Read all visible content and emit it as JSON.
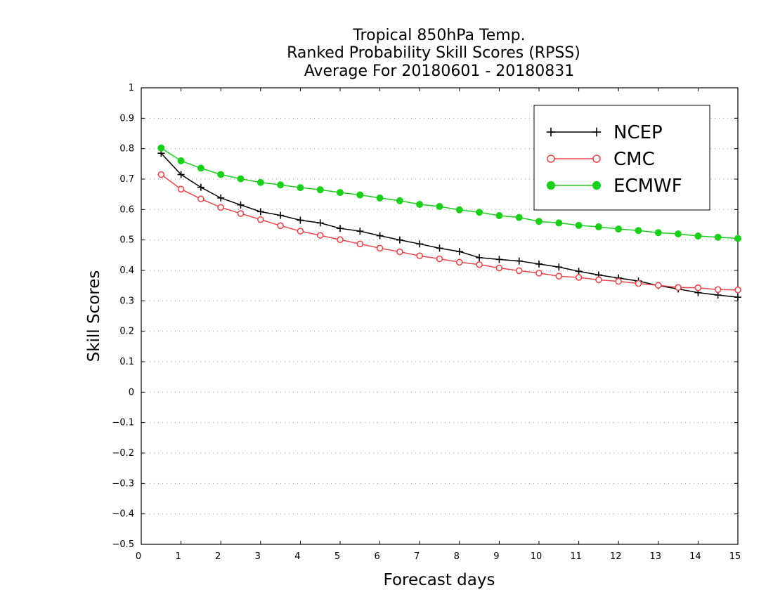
{
  "chart_data": {
    "type": "line",
    "title_lines": [
      "Tropical 850hPa Temp.",
      "Ranked Probability Skill Scores (RPSS)",
      "Average For 20180601 - 20180831"
    ],
    "xlabel": "Forecast days",
    "ylabel": "Skill Scores",
    "xlim": [
      0,
      15
    ],
    "ylim": [
      -0.5,
      1
    ],
    "x_ticks": [
      "0",
      "1",
      "2",
      "3",
      "4",
      "5",
      "6",
      "7",
      "8",
      "9",
      "10",
      "11",
      "12",
      "13",
      "14",
      "15"
    ],
    "y_ticks": [
      "−0.5",
      "−0.4",
      "−0.3",
      "−0.2",
      "−0.1",
      "0",
      "0.1",
      "0.2",
      "0.3",
      "0.4",
      "0.5",
      "0.6",
      "0.7",
      "0.8",
      "0.9",
      "1"
    ],
    "y_tick_values": [
      -0.5,
      -0.4,
      -0.3,
      -0.2,
      -0.1,
      0,
      0.1,
      0.2,
      0.3,
      0.4,
      0.5,
      0.6,
      0.7,
      0.8,
      0.9,
      1
    ],
    "grid": "horizontal-dotted",
    "legend_position": "top-right",
    "x": [
      0.5,
      1,
      1.5,
      2,
      2.5,
      3,
      3.5,
      4,
      4.5,
      5,
      5.5,
      6,
      6.5,
      7,
      7.5,
      8,
      8.5,
      9,
      9.5,
      10,
      10.5,
      11,
      11.5,
      12,
      12.5,
      13,
      13.5,
      14,
      14.5,
      15
    ],
    "series": [
      {
        "name": "NCEP",
        "color": "#000000",
        "marker": "plus",
        "values": [
          0.785,
          0.715,
          0.673,
          0.638,
          0.615,
          0.593,
          0.581,
          0.565,
          0.556,
          0.538,
          0.529,
          0.514,
          0.5,
          0.487,
          0.473,
          0.462,
          0.442,
          0.436,
          0.431,
          0.421,
          0.411,
          0.397,
          0.385,
          0.375,
          0.365,
          0.35,
          0.339,
          0.327,
          0.319,
          0.312
        ]
      },
      {
        "name": "CMC",
        "color": "#e8474a",
        "marker": "open-circle",
        "values": [
          0.715,
          0.667,
          0.635,
          0.607,
          0.587,
          0.567,
          0.547,
          0.529,
          0.515,
          0.501,
          0.487,
          0.473,
          0.461,
          0.448,
          0.438,
          0.427,
          0.419,
          0.408,
          0.399,
          0.391,
          0.381,
          0.377,
          0.369,
          0.364,
          0.357,
          0.351,
          0.344,
          0.343,
          0.337,
          0.336
        ]
      },
      {
        "name": "ECMWF",
        "color": "#1ccf1c",
        "marker": "filled-circle",
        "values": [
          0.802,
          0.76,
          0.736,
          0.715,
          0.701,
          0.689,
          0.681,
          0.672,
          0.665,
          0.656,
          0.648,
          0.638,
          0.629,
          0.617,
          0.61,
          0.599,
          0.591,
          0.58,
          0.574,
          0.561,
          0.556,
          0.548,
          0.543,
          0.536,
          0.531,
          0.524,
          0.52,
          0.513,
          0.509,
          0.505
        ]
      }
    ]
  }
}
